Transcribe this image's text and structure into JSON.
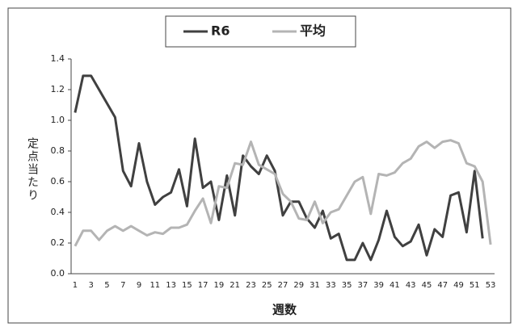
{
  "chart_data": {
    "type": "line",
    "y_label": "定点当たり",
    "x_label": "週数",
    "categories": [
      "1",
      null,
      "3",
      null,
      "5",
      null,
      "7",
      null,
      "9",
      null,
      "11",
      null,
      "13",
      null,
      "15",
      null,
      "17",
      null,
      "19",
      null,
      "21",
      null,
      "23",
      null,
      "25",
      null,
      "27",
      null,
      "29",
      null,
      "31",
      null,
      "33",
      null,
      "35",
      null,
      "37",
      null,
      "39",
      null,
      "41",
      null,
      "43",
      null,
      "45",
      null,
      "47",
      null,
      "49",
      null,
      "51",
      null,
      "53"
    ],
    "series": [
      {
        "name": "R6",
        "color": "#404040",
        "values": [
          1.05,
          1.29,
          1.29,
          1.2,
          1.11,
          1.02,
          0.67,
          0.57,
          0.85,
          0.6,
          0.45,
          0.5,
          0.53,
          0.68,
          0.44,
          0.88,
          0.56,
          0.6,
          0.35,
          0.64,
          0.38,
          0.77,
          0.7,
          0.65,
          0.77,
          0.67,
          0.38,
          0.47,
          0.47,
          0.36,
          0.3,
          0.41,
          0.23,
          0.26,
          0.09,
          0.09,
          0.2,
          0.09,
          0.22,
          0.41,
          0.24,
          0.18,
          0.21,
          0.32,
          0.12,
          0.29,
          0.24,
          0.51,
          0.53,
          0.27,
          0.67,
          0.23,
          null
        ]
      },
      {
        "name": "平均",
        "color": "#b4b4b4",
        "values": [
          0.18,
          0.28,
          0.28,
          0.22,
          0.28,
          0.31,
          0.28,
          0.31,
          0.28,
          0.25,
          0.27,
          0.26,
          0.3,
          0.3,
          0.32,
          0.41,
          0.49,
          0.33,
          0.57,
          0.56,
          0.72,
          0.71,
          0.86,
          0.71,
          0.68,
          0.65,
          0.52,
          0.47,
          0.36,
          0.35,
          0.47,
          0.33,
          0.4,
          0.42,
          0.51,
          0.6,
          0.63,
          0.39,
          0.65,
          0.64,
          0.66,
          0.72,
          0.75,
          0.83,
          0.86,
          0.82,
          0.86,
          0.87,
          0.85,
          0.72,
          0.7,
          0.6,
          0.19
        ]
      }
    ],
    "ylim": [
      0,
      1.4
    ],
    "yticks": [
      {
        "value": 0,
        "label": "0.0"
      },
      0.2,
      0.4,
      0.6,
      0.8,
      {
        "value": 1,
        "label": "1.0"
      },
      1.2,
      1.4
    ],
    "grid": false,
    "legend": "top"
  }
}
